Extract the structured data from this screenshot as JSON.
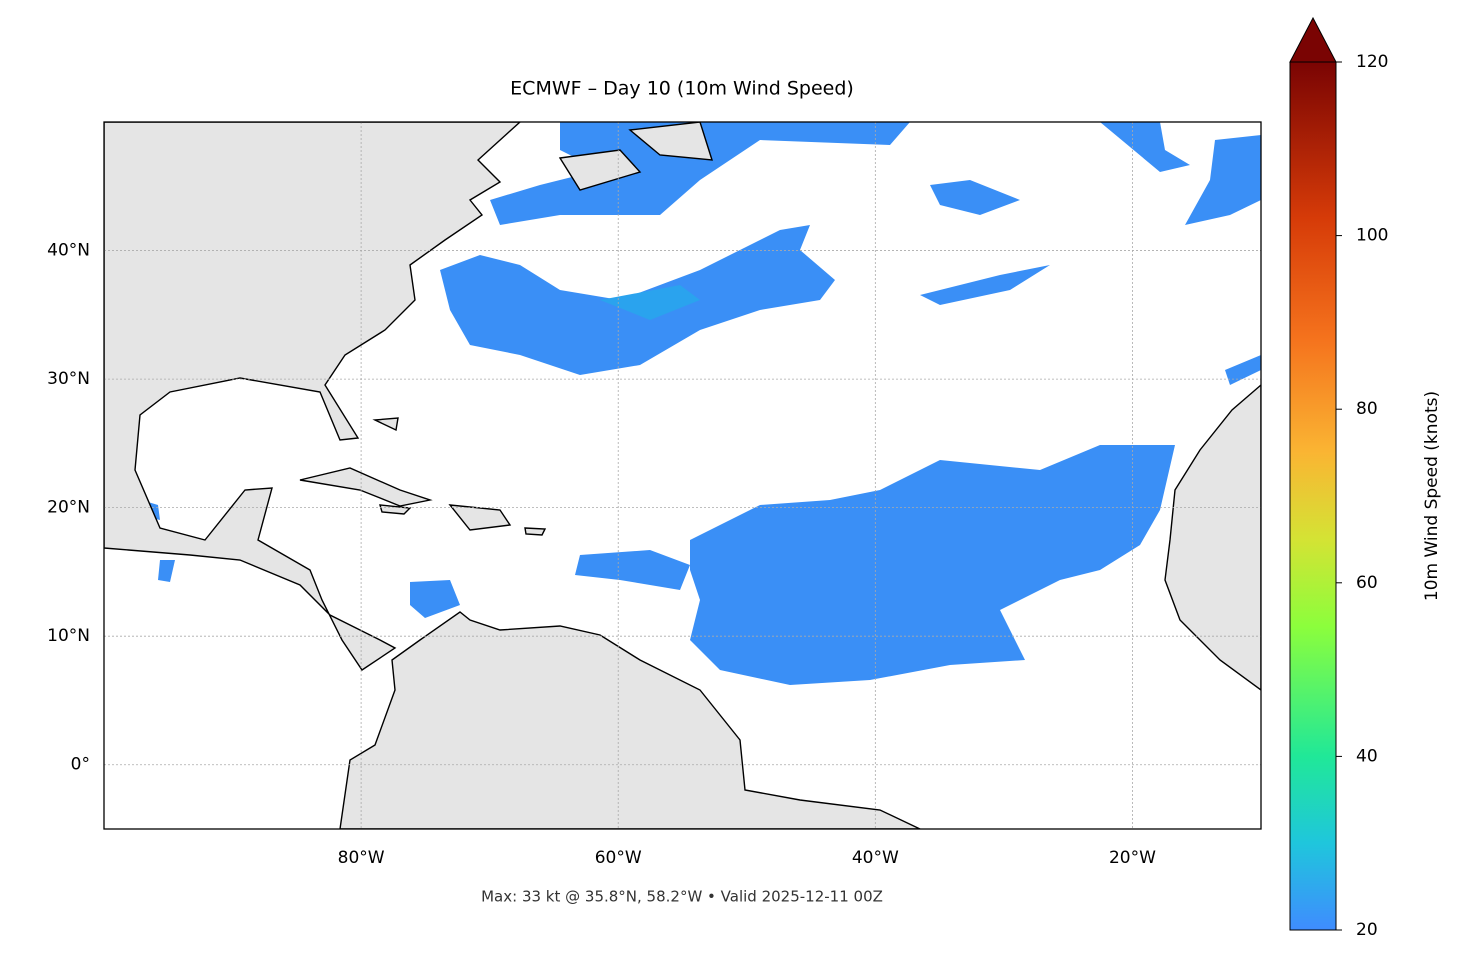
{
  "map": {
    "title": "ECMWF – Day 10 (10m Wind Speed)",
    "footer": "Max: 33 kt @ 35.8°N, 58.2°W • Valid 2025-12-11 00Z",
    "xlim": [
      -100,
      -10
    ],
    "ylim": [
      -5,
      50
    ],
    "xticks": [
      {
        "value": -80,
        "label": "80°W"
      },
      {
        "value": -60,
        "label": "60°W"
      },
      {
        "value": -40,
        "label": "40°W"
      },
      {
        "value": -20,
        "label": "20°W"
      }
    ],
    "yticks": [
      {
        "value": 40,
        "label": "40°N"
      },
      {
        "value": 30,
        "label": "30°N"
      },
      {
        "value": 20,
        "label": "20°N"
      },
      {
        "value": 10,
        "label": "10°N"
      },
      {
        "value": 0,
        "label": "0°"
      }
    ],
    "grid": true,
    "colorbar": {
      "label": "10m Wind Speed (knots)",
      "lim": [
        20,
        120
      ],
      "ticks": [
        20,
        40,
        60,
        80,
        100,
        120
      ]
    }
  }
}
